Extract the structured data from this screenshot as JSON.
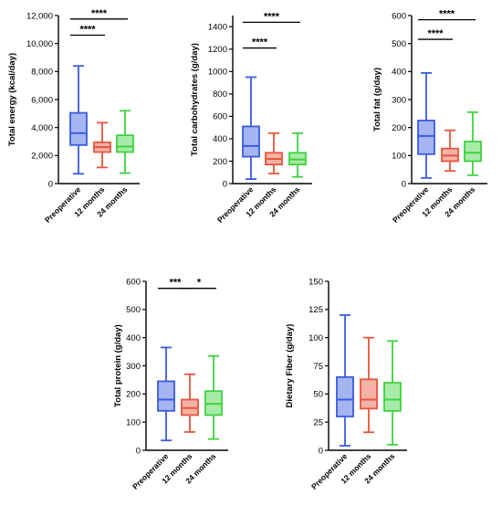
{
  "colors": {
    "preoperative": "#3a5be0",
    "12_months": "#e8553c",
    "24_months": "#3fd13f"
  },
  "chart_data": [
    {
      "type": "box",
      "ylabel": "Total energy (kcal/day)",
      "ylim": [
        0,
        12000
      ],
      "yticks": [
        0,
        2000,
        4000,
        6000,
        8000,
        10000,
        12000
      ],
      "ytick_labels": [
        "0",
        "2,000",
        "4,000",
        "6,000",
        "8,000",
        "10,000",
        "12,000"
      ],
      "categories": [
        "Preoperative",
        "12 months",
        "24 months"
      ],
      "boxes": [
        {
          "min": 700,
          "q1": 2750,
          "median": 3600,
          "q3": 5050,
          "max": 8400
        },
        {
          "min": 1150,
          "q1": 2250,
          "median": 2600,
          "q3": 2950,
          "max": 4350
        },
        {
          "min": 750,
          "q1": 2250,
          "median": 2650,
          "q3": 3450,
          "max": 5200
        }
      ],
      "significance": [
        {
          "from": 0,
          "to": 1,
          "y": 10600,
          "label": "****"
        },
        {
          "from": 0,
          "to": 2,
          "y": 11750,
          "label": "****"
        }
      ]
    },
    {
      "type": "box",
      "ylabel": "Total carbohydrates (g/day)",
      "ylim": [
        0,
        1500
      ],
      "yticks": [
        0,
        200,
        400,
        600,
        800,
        1000,
        1200,
        1400
      ],
      "ytick_labels": [
        "0",
        "200",
        "400",
        "600",
        "800",
        "1000",
        "1200",
        "1400"
      ],
      "categories": [
        "Preoperative",
        "12 months",
        "24 months"
      ],
      "boxes": [
        {
          "min": 40,
          "q1": 240,
          "median": 335,
          "q3": 510,
          "max": 950
        },
        {
          "min": 90,
          "q1": 170,
          "median": 220,
          "q3": 275,
          "max": 450
        },
        {
          "min": 60,
          "q1": 170,
          "median": 215,
          "q3": 275,
          "max": 450
        }
      ],
      "significance": [
        {
          "from": 0,
          "to": 1,
          "y": 1210,
          "label": "****"
        },
        {
          "from": 0,
          "to": 2,
          "y": 1440,
          "label": "****"
        }
      ]
    },
    {
      "type": "box",
      "ylabel": "Total fat (g/day)",
      "ylim": [
        0,
        600
      ],
      "yticks": [
        0,
        100,
        200,
        300,
        400,
        500,
        600
      ],
      "ytick_labels": [
        "0",
        "100",
        "200",
        "300",
        "400",
        "500",
        "600"
      ],
      "categories": [
        "Preoperative",
        "12 months",
        "24 months"
      ],
      "boxes": [
        {
          "min": 20,
          "q1": 105,
          "median": 170,
          "q3": 225,
          "max": 395
        },
        {
          "min": 45,
          "q1": 80,
          "median": 100,
          "q3": 125,
          "max": 190
        },
        {
          "min": 30,
          "q1": 80,
          "median": 110,
          "q3": 150,
          "max": 255
        }
      ],
      "significance": [
        {
          "from": 0,
          "to": 1,
          "y": 515,
          "label": "****"
        },
        {
          "from": 0,
          "to": 2,
          "y": 585,
          "label": "****"
        }
      ]
    },
    {
      "type": "box",
      "ylabel": "Total protein (g/day)",
      "ylim": [
        0,
        600
      ],
      "yticks": [
        0,
        100,
        200,
        300,
        400,
        500,
        600
      ],
      "ytick_labels": [
        "0",
        "100",
        "200",
        "300",
        "400",
        "500",
        "600"
      ],
      "categories": [
        "Preoperative",
        "12 months",
        "24 months"
      ],
      "boxes": [
        {
          "min": 35,
          "q1": 140,
          "median": 180,
          "q3": 245,
          "max": 365
        },
        {
          "min": 65,
          "q1": 125,
          "median": 150,
          "q3": 180,
          "max": 270
        },
        {
          "min": 40,
          "q1": 125,
          "median": 165,
          "q3": 210,
          "max": 335
        }
      ],
      "significance": [
        {
          "from": 0,
          "to": 1,
          "y": 575,
          "label": "***"
        },
        {
          "from": 1,
          "to": 2,
          "y": 575,
          "label": "*"
        }
      ]
    },
    {
      "type": "box",
      "ylabel": "Dietary Fiber (g/day)",
      "ylim": [
        0,
        150
      ],
      "yticks": [
        0,
        25,
        50,
        75,
        100,
        125,
        150
      ],
      "ytick_labels": [
        "0",
        "25",
        "50",
        "75",
        "100",
        "125",
        "150"
      ],
      "categories": [
        "Preoperative",
        "12 months",
        "24 months"
      ],
      "boxes": [
        {
          "min": 4,
          "q1": 30,
          "median": 45,
          "q3": 65,
          "max": 120
        },
        {
          "min": 16,
          "q1": 37,
          "median": 45,
          "q3": 63,
          "max": 100
        },
        {
          "min": 5,
          "q1": 35,
          "median": 45,
          "q3": 60,
          "max": 97
        }
      ],
      "significance": []
    }
  ]
}
